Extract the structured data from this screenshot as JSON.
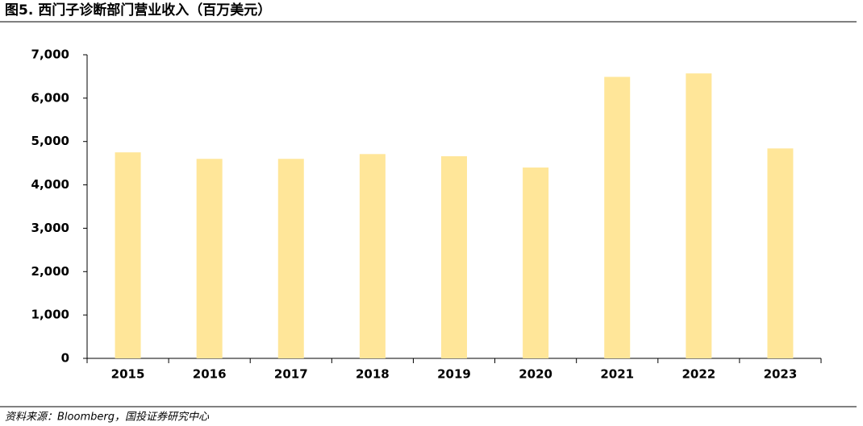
{
  "title": "图5. 西门子诊断部门营业收入（百万美元）",
  "source": "资料来源：Bloomberg，国投证券研究中心",
  "chart_data": {
    "type": "bar",
    "categories": [
      "2015",
      "2016",
      "2017",
      "2018",
      "2019",
      "2020",
      "2021",
      "2022",
      "2023"
    ],
    "values": [
      4750,
      4600,
      4600,
      4710,
      4660,
      4400,
      6490,
      6570,
      4840
    ],
    "color": "#ffe699",
    "ylim": [
      0,
      7000
    ],
    "yticks": [
      0,
      {
        "value": 1000,
        "label": "1,000"
      },
      {
        "value": 2000,
        "label": "2,000"
      },
      {
        "value": 3000,
        "label": "3,000"
      },
      {
        "value": 4000,
        "label": "4,000"
      },
      {
        "value": 5000,
        "label": "5,000"
      },
      {
        "value": 6000,
        "label": "6,000"
      },
      {
        "value": 7000,
        "label": "7,000"
      }
    ],
    "grid": false
  }
}
